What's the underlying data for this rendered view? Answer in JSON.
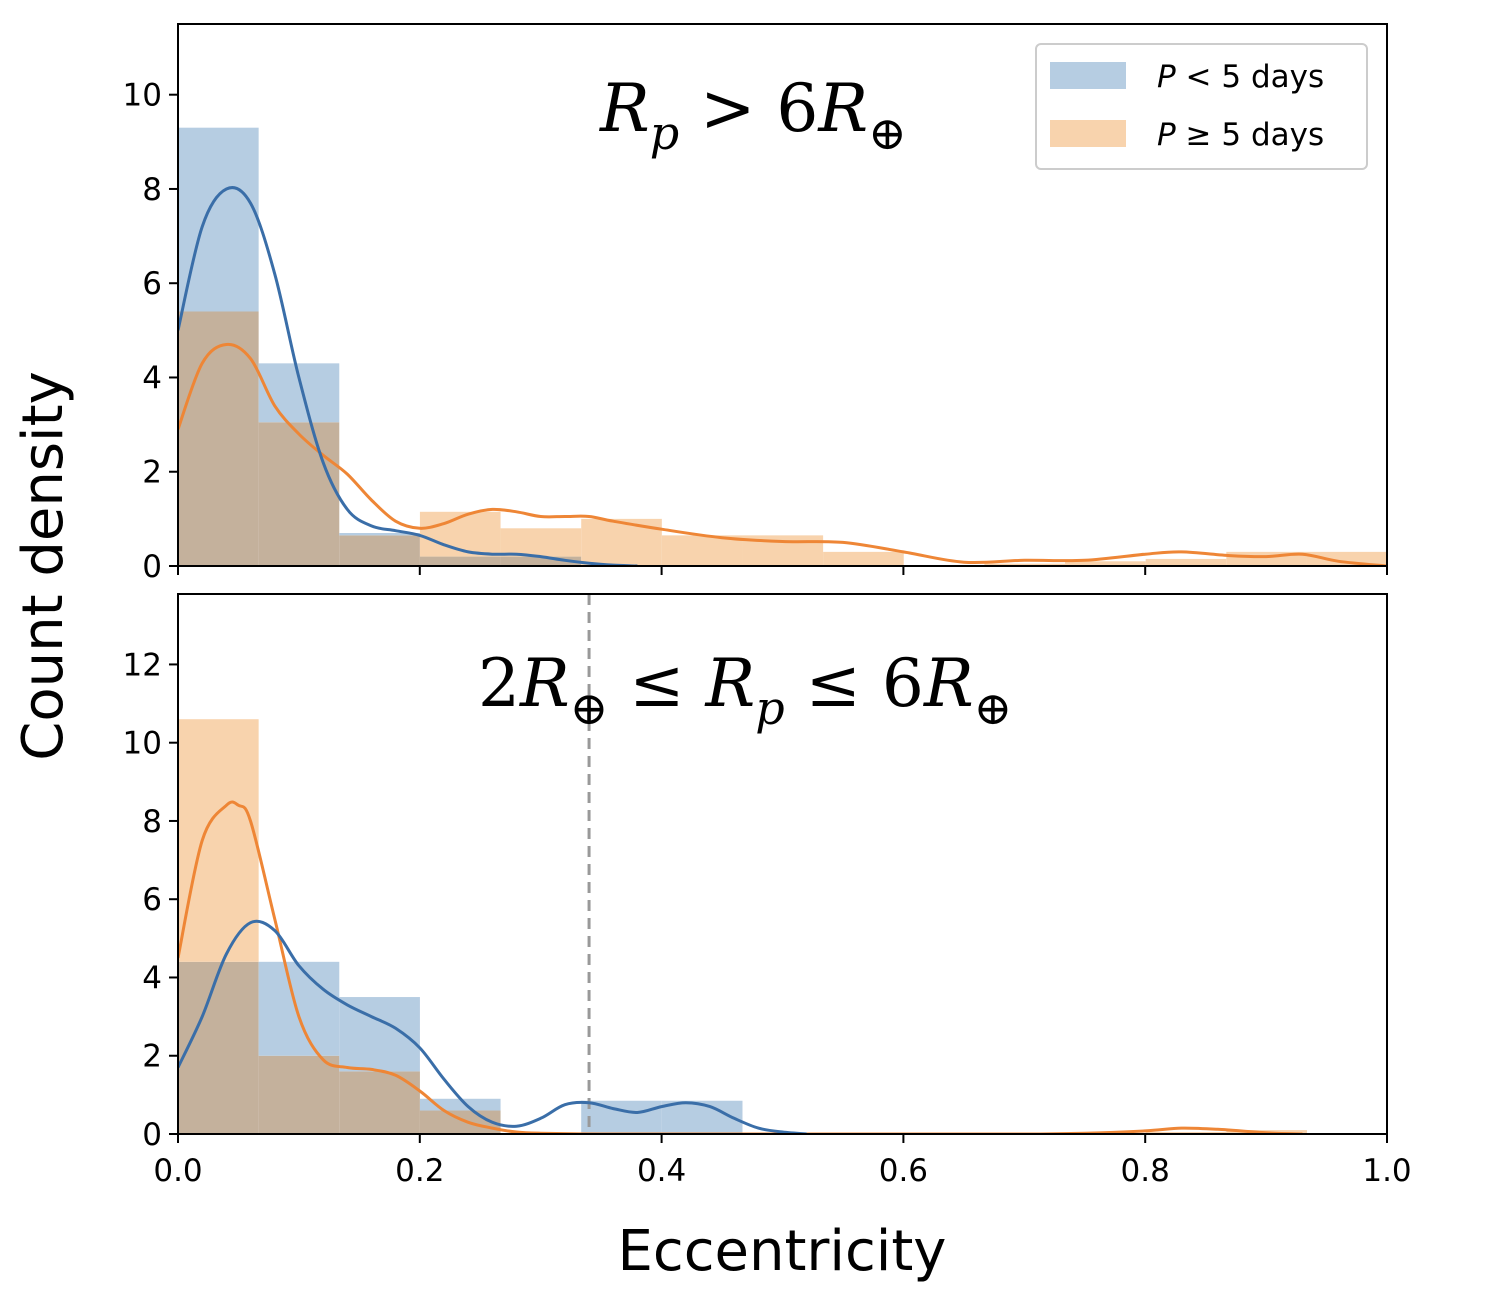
{
  "colors": {
    "blue_fill": "#b6cde2",
    "blue_line": "#3a6ea8",
    "orange_fill": "#f8d3ad",
    "orange_line": "#ee8636",
    "overlap_fill": "#c4b19c",
    "vline": "#999999"
  },
  "figure": {
    "ylabel": "Count density",
    "xlabel": "Eccentricity"
  },
  "legend": {
    "entries": [
      {
        "label_var": "P",
        "label_rest": " < 5 days",
        "series": "short"
      },
      {
        "label_var": "P",
        "label_rest": " ≥ 5 days",
        "series": "long"
      }
    ]
  },
  "chart_data": [
    {
      "type": "bar",
      "title": "R_p > 6R_⊕",
      "title_parts": {
        "main": "R",
        "sub": "p",
        "rest": " > 6R",
        "sub2": "⊕"
      },
      "xlim": [
        0,
        1
      ],
      "ylim": [
        0,
        11.5
      ],
      "yticks": [
        0,
        2,
        4,
        6,
        8,
        10
      ],
      "xticks": [
        0,
        0.2,
        0.4,
        0.6,
        0.8,
        1.0
      ],
      "show_xticklabels": false,
      "bin_width": 0.0667,
      "series": [
        {
          "name": "P < 5 days",
          "key": "short",
          "hist": [
            9.3,
            4.3,
            0.7,
            0.2,
            0.2,
            0,
            0,
            0,
            0,
            0,
            0,
            0,
            0,
            0,
            0
          ],
          "kde_x": [
            0,
            0.02,
            0.04,
            0.06,
            0.08,
            0.1,
            0.12,
            0.14,
            0.16,
            0.18,
            0.2,
            0.22,
            0.24,
            0.26,
            0.28,
            0.3,
            0.32,
            0.34,
            0.36,
            0.38
          ],
          "kde_y": [
            5.0,
            7.2,
            8.0,
            7.7,
            6.2,
            4.0,
            2.2,
            1.2,
            0.85,
            0.75,
            0.65,
            0.45,
            0.3,
            0.25,
            0.25,
            0.2,
            0.12,
            0.06,
            0.02,
            0.0
          ]
        },
        {
          "name": "P ≥ 5 days",
          "key": "long",
          "hist": [
            5.4,
            3.05,
            0.65,
            1.15,
            0.8,
            1.0,
            0.65,
            0.65,
            0.3,
            0.0,
            0.05,
            0.1,
            0.15,
            0.3,
            0.3
          ],
          "kde_x": [
            0,
            0.02,
            0.04,
            0.06,
            0.08,
            0.1,
            0.12,
            0.14,
            0.16,
            0.18,
            0.2,
            0.22,
            0.24,
            0.26,
            0.28,
            0.3,
            0.32,
            0.34,
            0.36,
            0.4,
            0.45,
            0.5,
            0.55,
            0.6,
            0.65,
            0.7,
            0.75,
            0.8,
            0.83,
            0.87,
            0.9,
            0.93,
            0.96,
            1.0
          ],
          "kde_y": [
            2.9,
            4.3,
            4.7,
            4.4,
            3.4,
            2.8,
            2.35,
            1.95,
            1.4,
            0.95,
            0.8,
            0.9,
            1.1,
            1.2,
            1.15,
            1.05,
            1.05,
            1.05,
            0.95,
            0.78,
            0.6,
            0.52,
            0.5,
            0.3,
            0.08,
            0.12,
            0.12,
            0.25,
            0.3,
            0.22,
            0.2,
            0.25,
            0.1,
            0.0
          ]
        }
      ]
    },
    {
      "type": "bar",
      "title": "2R_⊕ ≤ R_p ≤ 6R_⊕",
      "title_parts": {
        "a": "2R",
        "a_sub": "⊕",
        "b": " ≤ R",
        "b_sub": "p",
        "c": " ≤ 6R",
        "c_sub": "⊕"
      },
      "xlim": [
        0,
        1
      ],
      "ylim": [
        0,
        13.8
      ],
      "yticks": [
        0,
        2,
        4,
        6,
        8,
        10,
        12
      ],
      "xticks": [
        0,
        0.2,
        0.4,
        0.6,
        0.8,
        1.0
      ],
      "xticklabels": [
        "0.0",
        "0.2",
        "0.4",
        "0.6",
        "0.8",
        "1.0"
      ],
      "show_xticklabels": true,
      "bin_width": 0.0667,
      "vline": 0.34,
      "series": [
        {
          "name": "P < 5 days",
          "key": "short",
          "hist": [
            4.4,
            4.4,
            3.5,
            0.9,
            0.0,
            0.85,
            0.85,
            0,
            0,
            0,
            0,
            0,
            0,
            0,
            0
          ],
          "kde_x": [
            0,
            0.02,
            0.04,
            0.06,
            0.08,
            0.1,
            0.12,
            0.14,
            0.16,
            0.18,
            0.2,
            0.22,
            0.24,
            0.26,
            0.28,
            0.3,
            0.32,
            0.34,
            0.36,
            0.38,
            0.4,
            0.42,
            0.44,
            0.46,
            0.48,
            0.5,
            0.52
          ],
          "kde_y": [
            1.7,
            3.0,
            4.6,
            5.4,
            5.2,
            4.3,
            3.7,
            3.3,
            3.0,
            2.7,
            2.2,
            1.4,
            0.7,
            0.3,
            0.2,
            0.4,
            0.75,
            0.8,
            0.65,
            0.55,
            0.7,
            0.8,
            0.7,
            0.4,
            0.15,
            0.05,
            0.0
          ]
        },
        {
          "name": "P ≥ 5 days",
          "key": "long",
          "hist": [
            10.6,
            2.0,
            1.6,
            0.6,
            0.0,
            0.0,
            0.0,
            0,
            0,
            0,
            0,
            0,
            0.05,
            0.1,
            0.0
          ],
          "kde_x": [
            0,
            0.02,
            0.04,
            0.05,
            0.06,
            0.08,
            0.1,
            0.12,
            0.14,
            0.16,
            0.18,
            0.2,
            0.22,
            0.24,
            0.26,
            0.28,
            0.3,
            0.35,
            0.4,
            0.5,
            0.6,
            0.7,
            0.75,
            0.8,
            0.83,
            0.86,
            0.9,
            0.93
          ],
          "kde_y": [
            4.5,
            7.5,
            8.4,
            8.4,
            8.0,
            5.5,
            3.0,
            1.9,
            1.7,
            1.65,
            1.5,
            1.1,
            0.6,
            0.3,
            0.15,
            0.05,
            0.02,
            0.0,
            0.0,
            0.0,
            0.0,
            0.0,
            0.02,
            0.08,
            0.15,
            0.12,
            0.03,
            0.0
          ]
        }
      ]
    }
  ]
}
